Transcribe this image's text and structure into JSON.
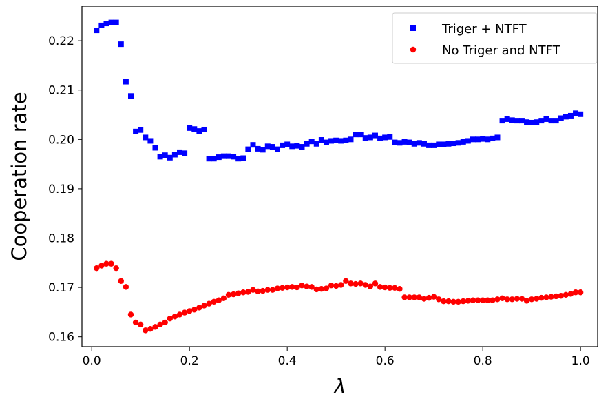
{
  "chart_data": {
    "type": "scatter",
    "xlabel": "λ",
    "ylabel": "Cooperation rate",
    "xlim": [
      -0.02,
      1.035
    ],
    "ylim": [
      0.158,
      0.227
    ],
    "xticks": [
      0.0,
      0.2,
      0.4,
      0.6,
      0.8,
      1.0
    ],
    "xtick_labels": [
      "0.0",
      "0.2",
      "0.4",
      "0.6",
      "0.8",
      "1.0"
    ],
    "yticks": [
      0.16,
      0.17,
      0.18,
      0.19,
      0.2,
      0.21,
      0.22
    ],
    "ytick_labels": [
      "0.16",
      "0.17",
      "0.18",
      "0.19",
      "0.20",
      "0.21",
      "0.22"
    ],
    "grid": false,
    "legend_position": "top-right",
    "series": [
      {
        "name": "Triger + NTFT",
        "marker": "square",
        "color": "#0000ff",
        "x": [
          0.01,
          0.02,
          0.03,
          0.04,
          0.05,
          0.06,
          0.07,
          0.08,
          0.09,
          0.1,
          0.11,
          0.12,
          0.13,
          0.14,
          0.15,
          0.16,
          0.17,
          0.18,
          0.19,
          0.2,
          0.21,
          0.22,
          0.23,
          0.24,
          0.25,
          0.26,
          0.27,
          0.28,
          0.29,
          0.3,
          0.31,
          0.32,
          0.33,
          0.34,
          0.35,
          0.36,
          0.37,
          0.38,
          0.39,
          0.4,
          0.41,
          0.42,
          0.43,
          0.44,
          0.45,
          0.46,
          0.47,
          0.48,
          0.49,
          0.5,
          0.51,
          0.52,
          0.53,
          0.54,
          0.55,
          0.56,
          0.57,
          0.58,
          0.59,
          0.6,
          0.61,
          0.62,
          0.63,
          0.64,
          0.65,
          0.66,
          0.67,
          0.68,
          0.69,
          0.7,
          0.71,
          0.72,
          0.73,
          0.74,
          0.75,
          0.76,
          0.77,
          0.78,
          0.79,
          0.8,
          0.81,
          0.82,
          0.83,
          0.84,
          0.85,
          0.86,
          0.87,
          0.88,
          0.89,
          0.9,
          0.91,
          0.92,
          0.93,
          0.94,
          0.95,
          0.96,
          0.97,
          0.98,
          0.99,
          1.0
        ],
        "y": [
          0.2221,
          0.2231,
          0.2235,
          0.2237,
          0.2237,
          0.2193,
          0.2117,
          0.2088,
          0.2016,
          0.2019,
          0.2004,
          0.1997,
          0.1983,
          0.1965,
          0.1968,
          0.1963,
          0.1969,
          0.1974,
          0.1972,
          0.2023,
          0.2021,
          0.2017,
          0.202,
          0.1961,
          0.1961,
          0.1964,
          0.1966,
          0.1966,
          0.1965,
          0.1961,
          0.1962,
          0.198,
          0.1989,
          0.1981,
          0.1979,
          0.1986,
          0.1985,
          0.198,
          0.1988,
          0.199,
          0.1986,
          0.1987,
          0.1985,
          0.1991,
          0.1996,
          0.1991,
          0.1999,
          0.1994,
          0.1997,
          0.1998,
          0.1997,
          0.1998,
          0.2,
          0.201,
          0.201,
          0.2003,
          0.2004,
          0.2008,
          0.2002,
          0.2004,
          0.2005,
          0.1994,
          0.1993,
          0.1995,
          0.1994,
          0.1991,
          0.1993,
          0.1991,
          0.1988,
          0.1988,
          0.199,
          0.199,
          0.1991,
          0.1992,
          0.1993,
          0.1995,
          0.1997,
          0.2,
          0.2,
          0.2001,
          0.2,
          0.2002,
          0.2004,
          0.2038,
          0.2041,
          0.2039,
          0.2038,
          0.2038,
          0.2035,
          0.2034,
          0.2035,
          0.2038,
          0.2041,
          0.2038,
          0.2038,
          0.2043,
          0.2046,
          0.2048,
          0.2053,
          0.2051
        ]
      },
      {
        "name": "No Triger and NTFT",
        "marker": "circle",
        "color": "#ff0000",
        "x": [
          0.01,
          0.02,
          0.03,
          0.04,
          0.05,
          0.06,
          0.07,
          0.08,
          0.09,
          0.1,
          0.11,
          0.12,
          0.13,
          0.14,
          0.15,
          0.16,
          0.17,
          0.18,
          0.19,
          0.2,
          0.21,
          0.22,
          0.23,
          0.24,
          0.25,
          0.26,
          0.27,
          0.28,
          0.29,
          0.3,
          0.31,
          0.32,
          0.33,
          0.34,
          0.35,
          0.36,
          0.37,
          0.38,
          0.39,
          0.4,
          0.41,
          0.42,
          0.43,
          0.44,
          0.45,
          0.46,
          0.47,
          0.48,
          0.49,
          0.5,
          0.51,
          0.52,
          0.53,
          0.54,
          0.55,
          0.56,
          0.57,
          0.58,
          0.59,
          0.6,
          0.61,
          0.62,
          0.63,
          0.64,
          0.65,
          0.66,
          0.67,
          0.68,
          0.69,
          0.7,
          0.71,
          0.72,
          0.73,
          0.74,
          0.75,
          0.76,
          0.77,
          0.78,
          0.79,
          0.8,
          0.81,
          0.82,
          0.83,
          0.84,
          0.85,
          0.86,
          0.87,
          0.88,
          0.89,
          0.9,
          0.91,
          0.92,
          0.93,
          0.94,
          0.95,
          0.96,
          0.97,
          0.98,
          0.99,
          1.0
        ],
        "y": [
          0.1739,
          0.1744,
          0.1748,
          0.1748,
          0.1739,
          0.1713,
          0.1701,
          0.1645,
          0.1629,
          0.1625,
          0.1613,
          0.1616,
          0.162,
          0.1625,
          0.1629,
          0.1637,
          0.1641,
          0.1645,
          0.1649,
          0.1652,
          0.1655,
          0.1659,
          0.1663,
          0.1667,
          0.1671,
          0.1674,
          0.1678,
          0.1685,
          0.1686,
          0.1688,
          0.169,
          0.1691,
          0.1695,
          0.1692,
          0.1693,
          0.1695,
          0.1695,
          0.1698,
          0.1699,
          0.17,
          0.1701,
          0.17,
          0.1704,
          0.1702,
          0.1701,
          0.1696,
          0.1697,
          0.1698,
          0.1704,
          0.1703,
          0.1705,
          0.1713,
          0.1708,
          0.1707,
          0.1708,
          0.1705,
          0.1702,
          0.1708,
          0.1701,
          0.17,
          0.1699,
          0.1699,
          0.1697,
          0.168,
          0.168,
          0.168,
          0.168,
          0.1677,
          0.1679,
          0.1681,
          0.1676,
          0.1672,
          0.1672,
          0.1671,
          0.1671,
          0.1672,
          0.1673,
          0.1674,
          0.1674,
          0.1674,
          0.1674,
          0.1674,
          0.1676,
          0.1678,
          0.1676,
          0.1676,
          0.1677,
          0.1677,
          0.1673,
          0.1676,
          0.1677,
          0.1679,
          0.168,
          0.1681,
          0.1682,
          0.1683,
          0.1685,
          0.1687,
          0.169,
          0.169
        ]
      }
    ]
  }
}
